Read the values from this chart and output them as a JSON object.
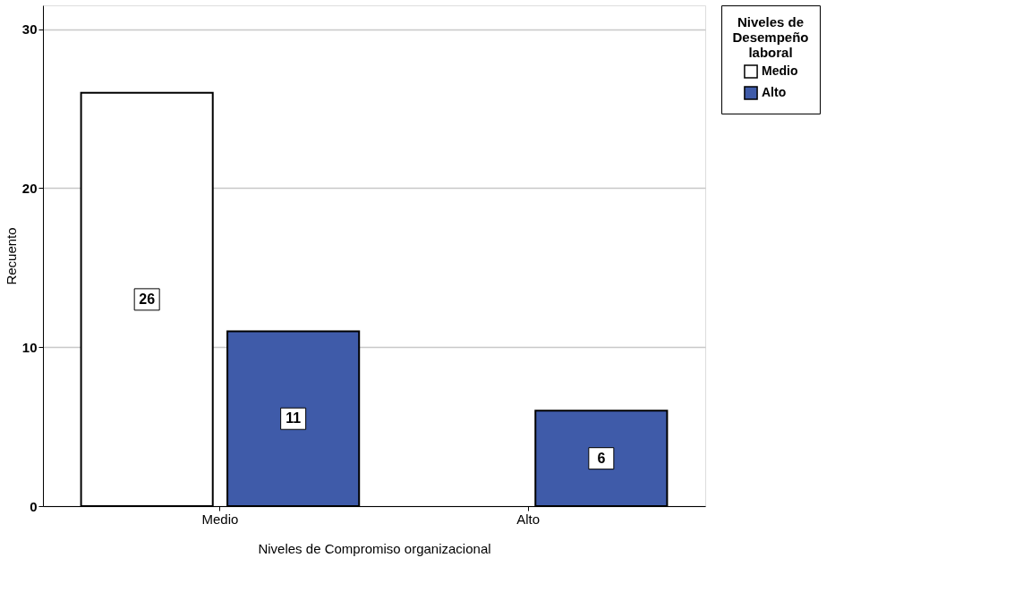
{
  "chart_data": {
    "type": "bar",
    "xlabel": "Niveles de Compromiso organizacional",
    "ylabel": "Recuento",
    "legend_title": "Niveles de Desempeño laboral",
    "categories": [
      "Medio",
      "Alto"
    ],
    "series": [
      {
        "name": "Medio",
        "color": "#ffffff",
        "values": [
          26,
          null
        ]
      },
      {
        "name": "Alto",
        "color": "#3f5ba9",
        "values": [
          11,
          6
        ]
      }
    ],
    "ylim": [
      0,
      31.5
    ],
    "yticks": [
      0,
      10,
      20,
      30
    ],
    "grid": "y",
    "legend": "top right",
    "data_labels": true
  }
}
